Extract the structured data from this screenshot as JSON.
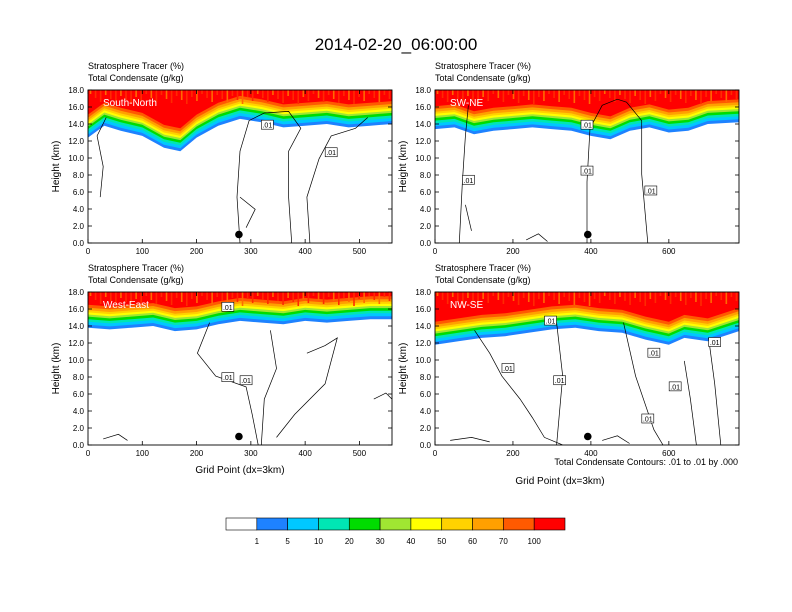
{
  "figure": {
    "title": "2014-02-20_06:00:00",
    "footnote": "Total Condensate Contours: .01 to .01 by .000"
  },
  "colorbar": {
    "colors": [
      "#ffffff",
      "#1e82ff",
      "#00c8ff",
      "#00e6b4",
      "#00dc00",
      "#a0e632",
      "#ffff00",
      "#ffd200",
      "#ffa000",
      "#ff5a00",
      "#ff0000"
    ],
    "labels": [
      "1",
      "5",
      "10",
      "20",
      "30",
      "40",
      "50",
      "60",
      "70",
      "100"
    ]
  },
  "chart_data": [
    {
      "type": "area",
      "panel_label": "South-North",
      "subtitle_line1": "Stratosphere Tracer   (%)",
      "subtitle_line2": "Total Condensate   (g/kg)",
      "xlabel": "",
      "ylabel": "Height (km)",
      "xlim": [
        0,
        560
      ],
      "xticks": [
        0,
        100,
        200,
        300,
        400,
        500
      ],
      "ylim": [
        0,
        18
      ],
      "yticks": [
        "0.0",
        "2.0",
        "4.0",
        "6.0",
        "8.0",
        "10.0",
        "12.0",
        "14.0",
        "16.0",
        "18.0"
      ],
      "tracer_front": {
        "x": [
          0,
          30,
          60,
          100,
          140,
          170,
          200,
          240,
          280,
          320,
          360,
          400,
          440,
          480,
          520,
          560
        ],
        "z": [
          12.4,
          13.8,
          13.2,
          12.6,
          11.2,
          10.8,
          12.4,
          13.8,
          14.6,
          14.2,
          13.6,
          13.8,
          14.0,
          13.6,
          13.8,
          14.0
        ]
      },
      "contour_labels": [
        ".01",
        ".01"
      ],
      "marker_x": 278,
      "marker_z": 1.0
    },
    {
      "type": "area",
      "panel_label": "SW-NE",
      "subtitle_line1": "Stratosphere Tracer   (%)",
      "subtitle_line2": "Total Condensate   (g/kg)",
      "xlabel": "",
      "ylabel": "Height (km)",
      "xlim": [
        0,
        780
      ],
      "xticks": [
        0,
        200,
        400,
        600
      ],
      "ylim": [
        0,
        18
      ],
      "yticks": [
        "0.0",
        "2.0",
        "4.0",
        "6.0",
        "8.0",
        "10.0",
        "12.0",
        "14.0",
        "16.0",
        "18.0"
      ],
      "tracer_front": {
        "x": [
          0,
          50,
          100,
          150,
          200,
          250,
          300,
          350,
          400,
          450,
          500,
          550,
          600,
          650,
          700,
          780
        ],
        "z": [
          13.4,
          13.6,
          12.8,
          13.2,
          13.4,
          13.6,
          13.4,
          13.2,
          12.6,
          12.2,
          13.2,
          13.6,
          13.0,
          13.2,
          14.0,
          14.2
        ]
      },
      "contour_labels": [
        ".01",
        ".01",
        ".01",
        ".01"
      ],
      "marker_x": 392,
      "marker_z": 1.0
    },
    {
      "type": "area",
      "panel_label": "West-East",
      "subtitle_line1": "Stratosphere Tracer   (%)",
      "subtitle_line2": "Total Condensate   (g/kg)",
      "xlabel": "Grid Point (dx=3km)",
      "ylabel": "Height (km)",
      "xlim": [
        0,
        560
      ],
      "xticks": [
        0,
        100,
        200,
        300,
        400,
        500
      ],
      "ylim": [
        0,
        18
      ],
      "yticks": [
        "0.0",
        "2.0",
        "4.0",
        "6.0",
        "8.0",
        "10.0",
        "12.0",
        "14.0",
        "16.0",
        "18.0"
      ],
      "tracer_front": {
        "x": [
          0,
          40,
          80,
          120,
          160,
          200,
          240,
          280,
          320,
          360,
          400,
          440,
          480,
          520,
          560
        ],
        "z": [
          13.8,
          13.6,
          13.8,
          14.0,
          13.4,
          13.6,
          14.2,
          14.6,
          14.4,
          14.2,
          14.6,
          14.4,
          14.6,
          14.8,
          14.8
        ]
      },
      "contour_labels": [
        ".01",
        ".01",
        ".01"
      ],
      "marker_x": 278,
      "marker_z": 1.0
    },
    {
      "type": "area",
      "panel_label": "NW-SE",
      "subtitle_line1": "Stratosphere Tracer   (%)",
      "subtitle_line2": "Total Condensate   (g/kg)",
      "xlabel": "Grid Point (dx=3km)",
      "ylabel": "Height (km)",
      "xlim": [
        0,
        780
      ],
      "xticks": [
        0,
        200,
        400,
        600
      ],
      "ylim": [
        0,
        18
      ],
      "yticks": [
        "0.0",
        "2.0",
        "4.0",
        "6.0",
        "8.0",
        "10.0",
        "12.0",
        "14.0",
        "16.0",
        "18.0"
      ],
      "tracer_front": {
        "x": [
          0,
          60,
          120,
          180,
          240,
          300,
          360,
          420,
          480,
          540,
          600,
          640,
          700,
          740,
          780
        ],
        "z": [
          11.8,
          12.2,
          12.6,
          12.8,
          13.2,
          13.6,
          13.8,
          13.4,
          13.2,
          12.4,
          11.8,
          12.6,
          12.2,
          12.8,
          13.4
        ]
      },
      "contour_labels": [
        ".01",
        ".01",
        ".01",
        ".01",
        ".01",
        ".01",
        ".01"
      ],
      "marker_x": 392,
      "marker_z": 1.0
    }
  ]
}
